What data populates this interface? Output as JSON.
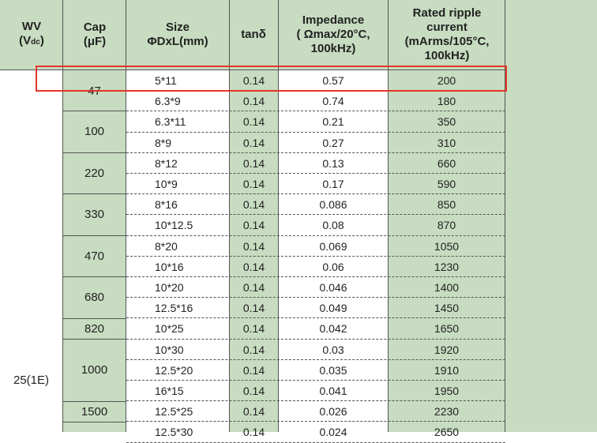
{
  "headers": {
    "wv_title": "WV",
    "wv_unit_open": "(V",
    "wv_unit_sub": "dc",
    "wv_unit_close": ")",
    "cap_title": "Cap",
    "cap_unit": "(μF)",
    "size_title": "Size",
    "size_unit": "ΦDxL(mm)",
    "tan": "tanδ",
    "imp_line1": "Impedance",
    "imp_line2": "( Ωmax/20°C,",
    "imp_line3": "100kHz)",
    "rip_line1": "Rated ripple",
    "rip_line2": "current",
    "rip_line3": "(mArms/105°C,",
    "rip_line4": "100kHz)"
  },
  "wv_value": "25(1E)",
  "cap_groups": [
    "47",
    "100",
    "220",
    "330",
    "470",
    "680",
    "820",
    "1000",
    "1500"
  ],
  "rows": [
    {
      "size": "5*11",
      "tan": "0.14",
      "imp": "0.57",
      "ripple": "200"
    },
    {
      "size": "6.3*9",
      "tan": "0.14",
      "imp": "0.74",
      "ripple": "180"
    },
    {
      "size": "6.3*11",
      "tan": "0.14",
      "imp": "0.21",
      "ripple": "350"
    },
    {
      "size": "8*9",
      "tan": "0.14",
      "imp": "0.27",
      "ripple": "310"
    },
    {
      "size": "8*12",
      "tan": "0.14",
      "imp": "0.13",
      "ripple": "660"
    },
    {
      "size": "10*9",
      "tan": "0.14",
      "imp": "0.17",
      "ripple": "590"
    },
    {
      "size": "8*16",
      "tan": "0.14",
      "imp": "0.086",
      "ripple": "850"
    },
    {
      "size": "10*12.5",
      "tan": "0.14",
      "imp": "0.08",
      "ripple": "870"
    },
    {
      "size": "8*20",
      "tan": "0.14",
      "imp": "0.069",
      "ripple": "1050"
    },
    {
      "size": "10*16",
      "tan": "0.14",
      "imp": "0.06",
      "ripple": "1230"
    },
    {
      "size": "10*20",
      "tan": "0.14",
      "imp": "0.046",
      "ripple": "1400"
    },
    {
      "size": "12.5*16",
      "tan": "0.14",
      "imp": "0.049",
      "ripple": "1450"
    },
    {
      "size": "10*25",
      "tan": "0.14",
      "imp": "0.042",
      "ripple": "1650"
    },
    {
      "size": "10*30",
      "tan": "0.14",
      "imp": "0.03",
      "ripple": "1920"
    },
    {
      "size": "12.5*20",
      "tan": "0.14",
      "imp": "0.035",
      "ripple": "1910"
    },
    {
      "size": "16*15",
      "tan": "0.14",
      "imp": "0.041",
      "ripple": "1950"
    },
    {
      "size": "12.5*25",
      "tan": "0.14",
      "imp": "0.026",
      "ripple": "2230"
    },
    {
      "size": "12.5*30",
      "tan": "0.14",
      "imp": "0.024",
      "ripple": "2650"
    }
  ],
  "colors": {
    "green": "#c7dcc0",
    "highlight": "#e53528",
    "line": "#555555"
  }
}
